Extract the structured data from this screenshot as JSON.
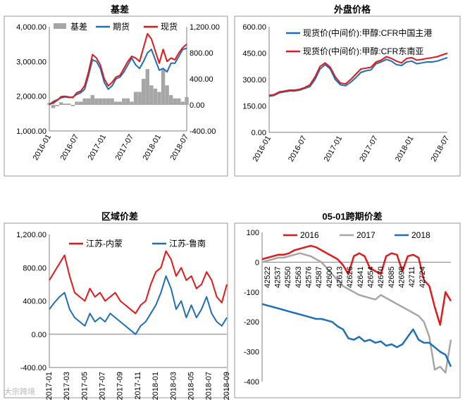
{
  "watermark": "大宗跨境",
  "colors": {
    "black": "#000000",
    "grey": "#a6a6a6",
    "blue": "#1f6fb8",
    "red": "#e3181b",
    "frame": "#9a9a9a"
  },
  "chart_data": [
    {
      "id": "basis",
      "type": "area+line",
      "title": "基差",
      "legend": [
        "基差",
        "期货",
        "现货"
      ],
      "left_ylim": [
        1000,
        4000
      ],
      "right_ylim": [
        -400,
        1200
      ],
      "left_ticks": [
        "4,000.00",
        "3,000.00",
        "2,000.00",
        "1,000.00"
      ],
      "right_ticks": [
        "1,200.00",
        "800.00",
        "400.00",
        "0.00",
        "-400.00"
      ],
      "x_ticks": [
        "2016-01",
        "2016-07",
        "2017-01",
        "2017-07",
        "2018-01",
        "2018-07"
      ],
      "x": [
        0,
        1,
        2,
        3,
        4,
        5,
        6,
        7,
        8,
        9,
        10,
        11,
        12,
        13,
        14,
        15,
        16,
        17,
        18,
        19,
        20,
        21,
        22,
        23,
        24,
        25,
        26,
        27,
        28,
        29,
        30,
        31,
        32,
        33,
        34,
        35
      ],
      "futures": [
        1750,
        1850,
        1900,
        1950,
        1980,
        1960,
        1980,
        2050,
        2100,
        2200,
        2600,
        3050,
        3000,
        2800,
        2400,
        2200,
        2300,
        2500,
        2550,
        2700,
        2900,
        3100,
        2900,
        2800,
        3000,
        3250,
        3350,
        3050,
        2750,
        2800,
        2700,
        2950,
        2950,
        3150,
        3350,
        3380
      ],
      "spot": [
        1780,
        1800,
        1880,
        1990,
        2000,
        1980,
        1960,
        2100,
        2150,
        2300,
        2700,
        3200,
        3100,
        2900,
        2500,
        2300,
        2400,
        2550,
        2600,
        2800,
        3000,
        3150,
        3100,
        3000,
        3400,
        3800,
        3650,
        3300,
        2950,
        3350,
        3000,
        3100,
        3050,
        3250,
        3400,
        3500
      ],
      "basis": [
        30,
        -50,
        -20,
        40,
        20,
        20,
        -20,
        50,
        50,
        100,
        100,
        150,
        100,
        100,
        100,
        100,
        100,
        50,
        50,
        100,
        100,
        50,
        200,
        200,
        400,
        550,
        300,
        250,
        200,
        550,
        300,
        150,
        100,
        100,
        50,
        120
      ]
    },
    {
      "id": "overseas",
      "type": "line",
      "title": "外盘价格",
      "legend": [
        "现货价(中间价):甲醇:CFR中国主港",
        "现货价(中间价):甲醇:CFR东南亚"
      ],
      "ylim": [
        0,
        600
      ],
      "y_ticks": [
        "600.00",
        "450.00",
        "300.00",
        "150.00",
        "0.00"
      ],
      "x_ticks": [
        "2016-01",
        "2016-07",
        "2017-01",
        "2017-07",
        "2018-01",
        "2018-07"
      ],
      "x": [
        0,
        1,
        2,
        3,
        4,
        5,
        6,
        7,
        8,
        9,
        10,
        11,
        12,
        13,
        14,
        15,
        16,
        17,
        18,
        19,
        20,
        21,
        22,
        23,
        24,
        25,
        26,
        27,
        28,
        29,
        30,
        31,
        32,
        33,
        34,
        35
      ],
      "china": [
        205,
        210,
        225,
        230,
        235,
        235,
        240,
        250,
        260,
        300,
        360,
        385,
        360,
        300,
        270,
        265,
        285,
        310,
        340,
        350,
        355,
        390,
        400,
        415,
        405,
        385,
        380,
        400,
        405,
        390,
        395,
        400,
        400,
        405,
        415,
        425
      ],
      "sea": [
        210,
        215,
        230,
        235,
        240,
        240,
        245,
        255,
        270,
        315,
        375,
        395,
        370,
        315,
        280,
        275,
        300,
        330,
        360,
        365,
        370,
        400,
        410,
        430,
        420,
        405,
        395,
        420,
        425,
        410,
        415,
        420,
        425,
        430,
        440,
        450
      ]
    },
    {
      "id": "regional",
      "type": "line",
      "title": "区域价差",
      "legend": [
        "江苏-内蒙",
        "江苏-鲁南"
      ],
      "ylim": [
        -400,
        1200
      ],
      "y_ticks": [
        "1,200.00",
        "800.00",
        "400.00",
        "0.00",
        "-400.00"
      ],
      "x_ticks": [
        "2017-01",
        "2017-03",
        "2017-05",
        "2017-07",
        "2017-09",
        "2017-11",
        "2018-01",
        "2018-03",
        "2018-05",
        "2018-07",
        "2018-09"
      ],
      "x": [
        0,
        1,
        2,
        3,
        4,
        5,
        6,
        7,
        8,
        9,
        10,
        11,
        12,
        13,
        14,
        15,
        16,
        17,
        18,
        19,
        20,
        21,
        22,
        23,
        24,
        25,
        26,
        27,
        28,
        29,
        30,
        31,
        32,
        33,
        34,
        35
      ],
      "neimeng": [
        650,
        750,
        850,
        950,
        700,
        500,
        450,
        400,
        550,
        450,
        500,
        400,
        450,
        500,
        400,
        350,
        300,
        250,
        350,
        400,
        600,
        750,
        800,
        1000,
        900,
        700,
        800,
        650,
        700,
        550,
        600,
        750,
        650,
        450,
        380,
        600
      ],
      "lunan": [
        300,
        380,
        450,
        500,
        300,
        200,
        150,
        100,
        250,
        150,
        200,
        150,
        250,
        200,
        150,
        100,
        50,
        0,
        100,
        150,
        250,
        350,
        500,
        700,
        550,
        300,
        400,
        200,
        350,
        200,
        300,
        450,
        250,
        150,
        100,
        200
      ]
    },
    {
      "id": "spread",
      "type": "line",
      "title": "05-01跨期价差",
      "legend": [
        "2016",
        "2017",
        "2018"
      ],
      "ylim": [
        -400,
        100
      ],
      "y_ticks": [
        "100",
        "0",
        "-100",
        "-200",
        "-300",
        "-400"
      ],
      "x_ticks": [
        "42522",
        "42537",
        "42550",
        "42563",
        "42576",
        "42587",
        "42600",
        "42613",
        "42626",
        "42641",
        "42654",
        "42670",
        "42685",
        "42698",
        "42711",
        "42724"
      ],
      "x": [
        0,
        1,
        2,
        3,
        4,
        5,
        6,
        7,
        8,
        9,
        10,
        11,
        12,
        13,
        14,
        15,
        16,
        17,
        18,
        19,
        20,
        21,
        22,
        23,
        24,
        25,
        26,
        27,
        28,
        29,
        30,
        31,
        32,
        33,
        34,
        35
      ],
      "y2016": [
        10,
        15,
        20,
        25,
        25,
        30,
        40,
        45,
        50,
        55,
        50,
        40,
        30,
        20,
        10,
        -10,
        -40,
        20,
        30,
        20,
        -20,
        -30,
        -40,
        20,
        30,
        25,
        -30,
        20,
        25,
        15,
        -60,
        -80,
        -150,
        -210,
        -100,
        -130
      ],
      "y2017": [
        0,
        5,
        10,
        15,
        15,
        20,
        25,
        30,
        25,
        20,
        10,
        0,
        -20,
        -40,
        -60,
        -80,
        -90,
        -100,
        -110,
        -115,
        -120,
        -125,
        -110,
        -120,
        -130,
        -140,
        -150,
        -160,
        -170,
        -180,
        -200,
        -250,
        -360,
        -350,
        -370,
        -260
      ],
      "y2018": [
        -140,
        -145,
        -150,
        -155,
        -160,
        -165,
        -170,
        -175,
        -180,
        -185,
        -190,
        -190,
        -195,
        -200,
        -215,
        -225,
        -255,
        -260,
        -250,
        -265,
        -260,
        -270,
        -265,
        -280,
        -275,
        -285,
        -275,
        -250,
        -225,
        -260,
        -270,
        -270,
        -285,
        -300,
        -310,
        -350
      ]
    }
  ]
}
